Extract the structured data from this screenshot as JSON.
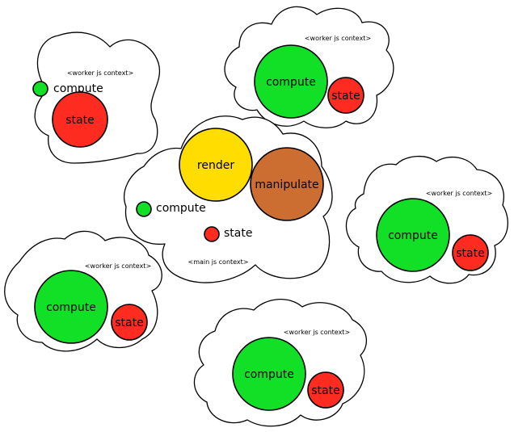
{
  "colors": {
    "compute": "#11e026",
    "state": "#fe2b20",
    "render": "#ffdd00",
    "manipulate": "#cc6e32"
  },
  "main": {
    "context_label": "<main js context>",
    "render_label": "render",
    "manipulate_label": "manipulate",
    "compute_label": "compute",
    "state_label": "state"
  },
  "workers": [
    {
      "context_label": "<worker js context>",
      "compute_label": "compute",
      "state_label": "state"
    },
    {
      "context_label": "<worker js context>",
      "compute_label": "compute",
      "state_label": "state"
    },
    {
      "context_label": "<worker js context>",
      "compute_label": "compute",
      "state_label": "state"
    },
    {
      "context_label": "<worker js context>",
      "compute_label": "compute",
      "state_label": "state"
    },
    {
      "context_label": "<worker js context>",
      "compute_label": "compute",
      "state_label": "state"
    }
  ]
}
